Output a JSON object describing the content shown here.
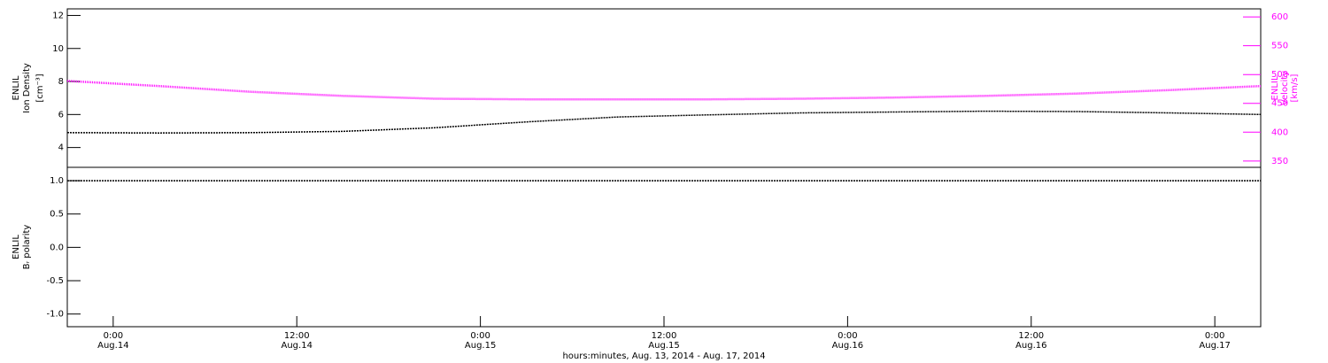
{
  "chart_data": [
    {
      "type": "line",
      "ylabel": [
        "ENLIL",
        "Ion Density",
        "[cm⁻³]"
      ],
      "y2label": [
        "ENLIL",
        "Velocity",
        "[km/s]"
      ],
      "x": [
        "2014-08-13T21:00",
        "2014-08-14T03:00",
        "2014-08-14T09:00",
        "2014-08-14T15:00",
        "2014-08-14T21:00",
        "2014-08-15T03:00",
        "2014-08-15T09:00",
        "2014-08-15T15:00",
        "2014-08-15T21:00",
        "2014-08-16T03:00",
        "2014-08-16T09:00",
        "2014-08-16T15:00",
        "2014-08-16T21:00",
        "2014-08-17T03:00"
      ],
      "xlim": [
        "2014-08-13T21:00",
        "2014-08-17T03:00"
      ],
      "ylim": [
        2.8,
        12.4
      ],
      "yticks": [
        4,
        6,
        8,
        10,
        12
      ],
      "y2lim": [
        339,
        614
      ],
      "y2ticks": [
        350,
        400,
        450,
        500,
        550,
        600
      ],
      "y2color": "#ff00ff",
      "series": [
        {
          "name": "Ion Density",
          "color": "#000000",
          "values": [
            4.9,
            4.88,
            4.9,
            4.98,
            5.2,
            5.55,
            5.85,
            5.98,
            6.1,
            6.15,
            6.2,
            6.18,
            6.1,
            6.0
          ]
        },
        {
          "name": "Velocity",
          "color": "#ff00ff",
          "axis": "y2",
          "values": [
            489,
            480,
            470,
            463,
            458,
            457,
            457,
            457,
            458,
            460,
            463,
            467,
            473,
            480
          ]
        }
      ]
    },
    {
      "type": "line",
      "ylabel": [
        "ENLIL",
        "Bᵣ polarity"
      ],
      "xlabel": "hours:minutes, Aug. 13, 2014 - Aug. 17, 2014",
      "x": [
        "2014-08-13T21:00",
        "2014-08-14T03:00",
        "2014-08-14T09:00",
        "2014-08-14T15:00",
        "2014-08-14T21:00",
        "2014-08-15T03:00",
        "2014-08-15T09:00",
        "2014-08-15T15:00",
        "2014-08-15T21:00",
        "2014-08-16T03:00",
        "2014-08-16T09:00",
        "2014-08-16T15:00",
        "2014-08-16T21:00",
        "2014-08-17T03:00"
      ],
      "xlim": [
        "2014-08-13T21:00",
        "2014-08-17T03:00"
      ],
      "xticks": [
        {
          "value": "2014-08-14T00:00",
          "label": "0:00",
          "date": "Aug.14"
        },
        {
          "value": "2014-08-14T12:00",
          "label": "12:00",
          "date": "Aug.14"
        },
        {
          "value": "2014-08-15T00:00",
          "label": "0:00",
          "date": "Aug.15"
        },
        {
          "value": "2014-08-15T12:00",
          "label": "12:00",
          "date": "Aug.15"
        },
        {
          "value": "2014-08-16T00:00",
          "label": "0:00",
          "date": "Aug.16"
        },
        {
          "value": "2014-08-16T12:00",
          "label": "12:00",
          "date": "Aug.16"
        },
        {
          "value": "2014-08-17T00:00",
          "label": "0:00",
          "date": "Aug.17"
        }
      ],
      "ylim": [
        -1.19,
        1.2
      ],
      "yticks": [
        {
          "value": 1.0,
          "label": "1.0"
        },
        {
          "value": 0.5,
          "label": "0.5"
        },
        {
          "value": 0,
          "label": "0.0"
        },
        -0.5,
        {
          "value": -1.0,
          "label": "-1.0"
        }
      ],
      "series": [
        {
          "name": "Br polarity",
          "color": "#000000",
          "values": [
            1,
            1,
            1,
            1,
            1,
            1,
            1,
            1,
            1,
            1,
            1,
            1,
            1,
            1
          ]
        }
      ]
    }
  ]
}
